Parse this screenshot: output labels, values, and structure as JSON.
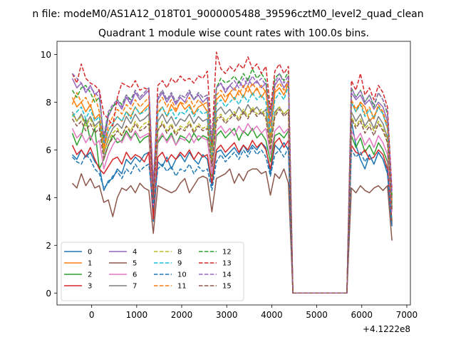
{
  "figure": {
    "suptitle": "n file: modeM0/AS1A12_018T01_9000005488_39596cztM0_level2_quad_clean",
    "title": "Quadrant 1 module wise count rates with 100.0s bins.",
    "x_offset_label": "+4.1222e8"
  },
  "chart_data": {
    "type": "line",
    "title": "Quadrant 1 module wise count rates with 100.0s bins.",
    "xlabel": "",
    "ylabel": "",
    "x_offset": "+4.1222e8",
    "xlim": [
      -770,
      7080
    ],
    "ylim": [
      -0.5,
      10.55
    ],
    "x_ticks": [
      0,
      1000,
      2000,
      3000,
      4000,
      5000,
      6000,
      7000
    ],
    "y_ticks": [
      0,
      2,
      4,
      6,
      8,
      10
    ],
    "x_tick_labels": [
      "0",
      "1000",
      "2000",
      "3000",
      "4000",
      "5000",
      "6000",
      "7000"
    ],
    "y_tick_labels": [
      "0",
      "2",
      "4",
      "6",
      "8",
      "10"
    ],
    "grid": false,
    "legend": {
      "position": "lower-left",
      "columns": 4
    },
    "x": [
      -430,
      -330,
      -230,
      -130,
      -30,
      70,
      170,
      270,
      370,
      470,
      570,
      670,
      770,
      870,
      970,
      1070,
      1170,
      1270,
      1370,
      1470,
      1570,
      1670,
      1770,
      1870,
      1970,
      2070,
      2170,
      2270,
      2370,
      2470,
      2570,
      2670,
      2770,
      2870,
      2970,
      3070,
      3170,
      3270,
      3370,
      3470,
      3570,
      3670,
      3770,
      3870,
      3970,
      4070,
      4170,
      4270,
      4370,
      4470,
      5670,
      5770,
      5870,
      5970,
      6070,
      6170,
      6270,
      6370,
      6470,
      6570,
      6670
    ],
    "series": [
      {
        "name": "0",
        "color": "#1f77b4",
        "dash": false,
        "values": [
          5.8,
          5.6,
          6.0,
          5.7,
          5.9,
          5.5,
          5.3,
          4.3,
          4.7,
          4.8,
          5.2,
          5.0,
          5.6,
          5.4,
          5.7,
          5.5,
          5.8,
          5.9,
          3.0,
          5.5,
          5.3,
          5.7,
          5.2,
          5.6,
          5.8,
          5.5,
          5.9,
          5.6,
          5.4,
          5.8,
          5.6,
          4.5,
          5.9,
          6.0,
          5.7,
          5.9,
          6.1,
          5.8,
          6.2,
          5.9,
          6.2,
          6.0,
          6.3,
          6.1,
          5.0,
          6.2,
          6.0,
          6.3,
          6.0,
          0.0,
          0.0,
          7.2,
          6.2,
          5.6,
          5.2,
          5.8,
          5.4,
          5.9,
          5.6,
          5.0,
          2.8
        ]
      },
      {
        "name": "1",
        "color": "#ff7f0e",
        "dash": false,
        "values": [
          8.2,
          7.8,
          8.0,
          7.6,
          7.9,
          7.3,
          7.5,
          6.0,
          6.8,
          7.1,
          7.4,
          7.2,
          7.6,
          7.4,
          7.8,
          7.5,
          7.7,
          7.9,
          4.2,
          7.6,
          7.8,
          7.4,
          7.9,
          7.6,
          8.0,
          7.7,
          7.9,
          7.5,
          7.8,
          7.9,
          7.6,
          5.5,
          8.1,
          8.3,
          8.0,
          8.4,
          8.1,
          8.5,
          8.2,
          8.7,
          8.3,
          8.6,
          8.2,
          8.5,
          6.5,
          8.4,
          8.6,
          8.3,
          8.8,
          0.0,
          0.0,
          8.0,
          7.6,
          8.0,
          7.8,
          7.2,
          7.4,
          7.8,
          7.5,
          6.9,
          3.8
        ]
      },
      {
        "name": "2",
        "color": "#2ca02c",
        "dash": false,
        "values": [
          6.7,
          6.2,
          6.6,
          7.3,
          6.4,
          6.9,
          5.2,
          5.6,
          6.2,
          6.6,
          6.3,
          6.4,
          6.8,
          6.5,
          6.7,
          6.3,
          6.5,
          6.6,
          3.4,
          6.3,
          6.6,
          6.4,
          6.7,
          6.2,
          6.6,
          6.5,
          6.3,
          6.7,
          6.4,
          6.6,
          6.5,
          4.9,
          6.6,
          6.8,
          6.5,
          6.7,
          6.9,
          6.4,
          6.8,
          6.6,
          6.9,
          6.5,
          6.7,
          6.4,
          5.5,
          6.6,
          6.7,
          6.5,
          6.8,
          0.0,
          0.0,
          6.6,
          6.1,
          6.5,
          5.9,
          6.2,
          5.8,
          6.3,
          6.0,
          5.5,
          3.0
        ]
      },
      {
        "name": "3",
        "color": "#d62728",
        "dash": false,
        "values": [
          6.2,
          5.8,
          6.0,
          5.7,
          6.1,
          5.6,
          5.2,
          5.0,
          5.3,
          5.6,
          5.7,
          5.4,
          5.9,
          5.6,
          5.8,
          5.7,
          5.5,
          5.9,
          3.1,
          5.7,
          5.9,
          5.5,
          5.8,
          5.6,
          5.9,
          5.7,
          6.0,
          5.6,
          5.9,
          5.7,
          5.8,
          4.6,
          6.0,
          6.2,
          5.9,
          6.1,
          6.3,
          5.9,
          6.2,
          6.0,
          6.4,
          6.1,
          6.3,
          6.0,
          5.2,
          6.3,
          6.5,
          6.1,
          6.4,
          0.0,
          0.0,
          6.2,
          5.9,
          5.8,
          6.0,
          5.6,
          5.7,
          6.0,
          5.8,
          5.2,
          2.9
        ]
      },
      {
        "name": "4",
        "color": "#9467bd",
        "dash": false,
        "values": [
          9.0,
          8.6,
          8.8,
          8.4,
          8.7,
          8.3,
          8.5,
          6.2,
          7.4,
          7.8,
          8.0,
          7.7,
          8.2,
          7.9,
          8.4,
          8.1,
          8.3,
          8.5,
          4.4,
          8.1,
          8.4,
          8.0,
          8.3,
          7.9,
          8.2,
          8.0,
          8.4,
          8.1,
          8.3,
          8.0,
          8.2,
          6.0,
          8.6,
          8.8,
          8.4,
          8.7,
          8.5,
          8.9,
          8.6,
          9.0,
          8.7,
          8.9,
          8.6,
          8.8,
          7.0,
          8.7,
          9.0,
          8.6,
          8.9,
          0.0,
          0.0,
          8.4,
          8.1,
          8.3,
          7.9,
          8.1,
          7.7,
          8.0,
          7.8,
          7.2,
          4.0
        ]
      },
      {
        "name": "5",
        "color": "#8c564b",
        "dash": false,
        "values": [
          4.6,
          4.4,
          5.0,
          4.5,
          4.8,
          4.4,
          4.5,
          3.8,
          3.9,
          3.2,
          4.0,
          4.4,
          4.3,
          4.5,
          4.2,
          4.6,
          4.4,
          4.3,
          2.5,
          4.5,
          4.4,
          4.3,
          4.2,
          4.3,
          4.6,
          4.8,
          4.2,
          4.5,
          4.8,
          4.9,
          4.8,
          3.4,
          4.8,
          4.9,
          5.0,
          5.2,
          4.6,
          5.0,
          4.7,
          5.1,
          5.2,
          5.2,
          5.0,
          5.1,
          4.1,
          5.0,
          4.8,
          5.2,
          4.6,
          0.0,
          0.0,
          4.4,
          4.2,
          4.5,
          4.3,
          4.2,
          4.4,
          4.5,
          4.3,
          4.5,
          2.2
        ]
      },
      {
        "name": "6",
        "color": "#e377c2",
        "dash": false,
        "values": [
          6.9,
          6.5,
          6.7,
          6.3,
          6.6,
          6.2,
          6.4,
          5.2,
          5.8,
          6.2,
          6.5,
          6.3,
          6.7,
          6.4,
          6.8,
          6.5,
          6.6,
          6.7,
          3.6,
          6.4,
          6.7,
          6.3,
          6.6,
          6.2,
          6.5,
          6.4,
          6.7,
          6.3,
          6.6,
          6.5,
          6.4,
          5.0,
          6.8,
          7.0,
          6.7,
          6.9,
          6.6,
          7.0,
          6.7,
          7.1,
          6.8,
          7.0,
          6.7,
          6.9,
          5.8,
          6.8,
          7.0,
          6.7,
          6.9,
          0.0,
          0.0,
          6.8,
          6.4,
          6.7,
          6.2,
          6.5,
          6.1,
          6.6,
          6.3,
          5.8,
          3.4
        ]
      },
      {
        "name": "7",
        "color": "#7f7f7f",
        "dash": false,
        "values": [
          7.6,
          7.2,
          7.5,
          7.1,
          7.4,
          7.0,
          7.2,
          5.8,
          6.5,
          6.9,
          7.1,
          6.9,
          7.4,
          7.1,
          7.5,
          7.2,
          7.3,
          7.5,
          3.9,
          7.2,
          7.5,
          7.1,
          7.4,
          7.0,
          7.3,
          7.2,
          7.5,
          7.1,
          7.4,
          7.2,
          7.3,
          5.4,
          7.6,
          7.8,
          7.5,
          7.7,
          7.4,
          7.8,
          7.5,
          7.9,
          7.6,
          7.8,
          7.5,
          7.7,
          6.3,
          7.6,
          7.8,
          7.5,
          7.7,
          0.0,
          0.0,
          7.6,
          7.2,
          7.5,
          7.0,
          7.3,
          6.9,
          7.4,
          7.1,
          6.5,
          3.6
        ]
      },
      {
        "name": "8",
        "color": "#bcbd22",
        "dash": true,
        "values": [
          7.5,
          7.2,
          7.4,
          7.0,
          7.3,
          6.9,
          7.1,
          5.9,
          6.4,
          6.7,
          6.9,
          6.6,
          7.0,
          6.8,
          7.2,
          6.9,
          7.1,
          7.2,
          4.0,
          6.8,
          7.2,
          6.8,
          7.1,
          6.7,
          7.0,
          6.9,
          7.2,
          6.8,
          7.1,
          6.9,
          7.0,
          5.5,
          7.3,
          7.5,
          7.2,
          7.4,
          7.6,
          7.3,
          7.7,
          7.4,
          7.8,
          7.5,
          7.7,
          7.4,
          6.2,
          7.5,
          7.8,
          7.5,
          7.7,
          0.0,
          0.0,
          7.4,
          7.0,
          7.3,
          6.9,
          7.1,
          6.8,
          7.2,
          6.9,
          6.4,
          3.6
        ]
      },
      {
        "name": "9",
        "color": "#17becf",
        "dash": true,
        "values": [
          7.4,
          7.6,
          7.8,
          7.3,
          7.7,
          7.2,
          7.4,
          6.2,
          6.8,
          7.1,
          7.4,
          7.2,
          7.6,
          7.3,
          7.8,
          7.5,
          7.6,
          7.8,
          4.3,
          7.5,
          7.8,
          7.4,
          7.7,
          7.3,
          7.6,
          7.5,
          7.8,
          7.4,
          7.7,
          7.5,
          7.6,
          5.8,
          7.9,
          8.1,
          7.8,
          8.0,
          8.2,
          7.9,
          8.3,
          8.0,
          8.4,
          8.1,
          8.3,
          8.0,
          6.7,
          8.1,
          8.4,
          8.1,
          8.7,
          0.0,
          0.0,
          8.0,
          7.6,
          7.9,
          7.4,
          7.7,
          7.3,
          7.8,
          7.5,
          6.9,
          3.7
        ]
      },
      {
        "name": "10",
        "color": "#1f77b4",
        "dash": true,
        "values": [
          5.7,
          5.5,
          5.4,
          5.8,
          5.6,
          5.2,
          5.0,
          4.4,
          4.6,
          4.9,
          5.1,
          4.8,
          5.2,
          5.0,
          5.4,
          5.1,
          5.3,
          5.4,
          3.6,
          5.2,
          5.4,
          5.1,
          5.3,
          4.9,
          5.2,
          5.1,
          5.4,
          5.0,
          5.3,
          5.1,
          5.2,
          4.3,
          5.5,
          5.8,
          5.5,
          5.7,
          5.9,
          5.6,
          6.0,
          5.7,
          6.1,
          5.8,
          6.0,
          5.7,
          4.9,
          5.8,
          6.0,
          5.7,
          6.1,
          0.0,
          0.0,
          6.0,
          5.7,
          5.9,
          5.5,
          5.8,
          5.4,
          5.9,
          5.6,
          5.1,
          2.8
        ]
      },
      {
        "name": "11",
        "color": "#ff7f0e",
        "dash": true,
        "values": [
          7.9,
          8.4,
          8.0,
          8.2,
          7.8,
          8.3,
          7.6,
          6.1,
          7.0,
          7.4,
          7.7,
          7.5,
          7.9,
          7.7,
          8.1,
          7.8,
          8.0,
          8.2,
          4.1,
          7.9,
          8.2,
          7.8,
          8.1,
          7.7,
          8.0,
          7.9,
          8.2,
          7.8,
          8.1,
          7.9,
          8.0,
          6.0,
          8.3,
          8.5,
          8.2,
          8.4,
          8.6,
          8.3,
          8.7,
          8.4,
          8.8,
          8.5,
          8.7,
          8.4,
          7.0,
          8.5,
          8.8,
          8.5,
          8.9,
          0.0,
          0.0,
          8.1,
          7.7,
          8.0,
          7.5,
          7.8,
          7.3,
          7.9,
          7.6,
          7.0,
          3.9
        ]
      },
      {
        "name": "12",
        "color": "#2ca02c",
        "dash": true,
        "values": [
          8.5,
          8.2,
          8.6,
          8.7,
          8.4,
          8.0,
          8.2,
          6.5,
          7.5,
          7.8,
          8.1,
          7.9,
          8.3,
          8.1,
          8.5,
          8.2,
          8.4,
          8.6,
          4.5,
          8.2,
          8.5,
          8.1,
          8.4,
          8.0,
          8.3,
          8.2,
          8.5,
          8.1,
          8.4,
          8.2,
          8.3,
          6.2,
          8.6,
          9.0,
          8.8,
          8.9,
          9.1,
          8.8,
          9.2,
          8.9,
          9.4,
          9.0,
          9.2,
          8.9,
          7.4,
          9.0,
          9.2,
          8.9,
          9.3,
          0.0,
          0.0,
          8.6,
          8.2,
          8.5,
          8.0,
          8.3,
          7.8,
          8.4,
          8.1,
          7.5,
          4.1
        ]
      },
      {
        "name": "13",
        "color": "#d62728",
        "dash": true,
        "values": [
          9.2,
          8.8,
          9.6,
          9.0,
          8.8,
          8.7,
          8.5,
          7.5,
          7.3,
          7.0,
          8.2,
          8.8,
          8.7,
          8.6,
          8.9,
          8.5,
          8.6,
          8.5,
          4.0,
          8.7,
          8.9,
          8.6,
          9.0,
          8.8,
          9.1,
          8.9,
          9.0,
          8.8,
          9.1,
          9.0,
          9.3,
          6.3,
          10.1,
          9.4,
          9.2,
          9.5,
          9.3,
          9.6,
          9.4,
          9.9,
          9.4,
          9.6,
          9.2,
          9.5,
          7.7,
          9.3,
          9.6,
          9.2,
          9.5,
          0.0,
          0.0,
          8.9,
          8.5,
          9.2,
          8.3,
          8.6,
          8.1,
          8.7,
          8.4,
          7.8,
          4.3
        ]
      },
      {
        "name": "14",
        "color": "#9467bd",
        "dash": true,
        "values": [
          9.2,
          9.0,
          8.8,
          8.5,
          8.6,
          8.4,
          8.2,
          6.6,
          7.6,
          7.9,
          8.1,
          7.8,
          8.3,
          8.0,
          8.5,
          8.2,
          8.4,
          8.6,
          4.6,
          8.2,
          8.5,
          8.1,
          8.4,
          8.0,
          8.3,
          8.2,
          8.5,
          8.1,
          8.4,
          8.2,
          8.3,
          6.4,
          8.6,
          8.8,
          8.5,
          8.7,
          8.9,
          8.6,
          9.0,
          8.7,
          9.1,
          8.8,
          9.0,
          8.7,
          7.4,
          8.8,
          9.2,
          8.8,
          9.1,
          0.0,
          0.0,
          8.6,
          8.2,
          8.5,
          8.0,
          8.3,
          7.9,
          8.4,
          8.1,
          7.6,
          4.2
        ]
      },
      {
        "name": "15",
        "color": "#8c564b",
        "dash": true,
        "values": [
          7.3,
          7.0,
          7.2,
          6.8,
          7.1,
          6.7,
          6.9,
          5.6,
          6.2,
          6.5,
          6.8,
          6.6,
          7.0,
          6.7,
          7.1,
          6.8,
          6.9,
          7.1,
          3.9,
          6.8,
          7.1,
          6.7,
          7.0,
          6.6,
          6.9,
          6.8,
          7.1,
          6.7,
          7.0,
          6.8,
          6.9,
          5.3,
          7.2,
          7.4,
          7.1,
          7.3,
          7.5,
          7.2,
          7.6,
          7.3,
          7.7,
          7.4,
          7.6,
          7.3,
          6.0,
          7.4,
          7.7,
          7.4,
          7.6,
          0.0,
          0.0,
          7.3,
          6.9,
          7.2,
          6.7,
          7.0,
          6.6,
          7.1,
          6.8,
          6.3,
          3.5
        ]
      }
    ]
  }
}
